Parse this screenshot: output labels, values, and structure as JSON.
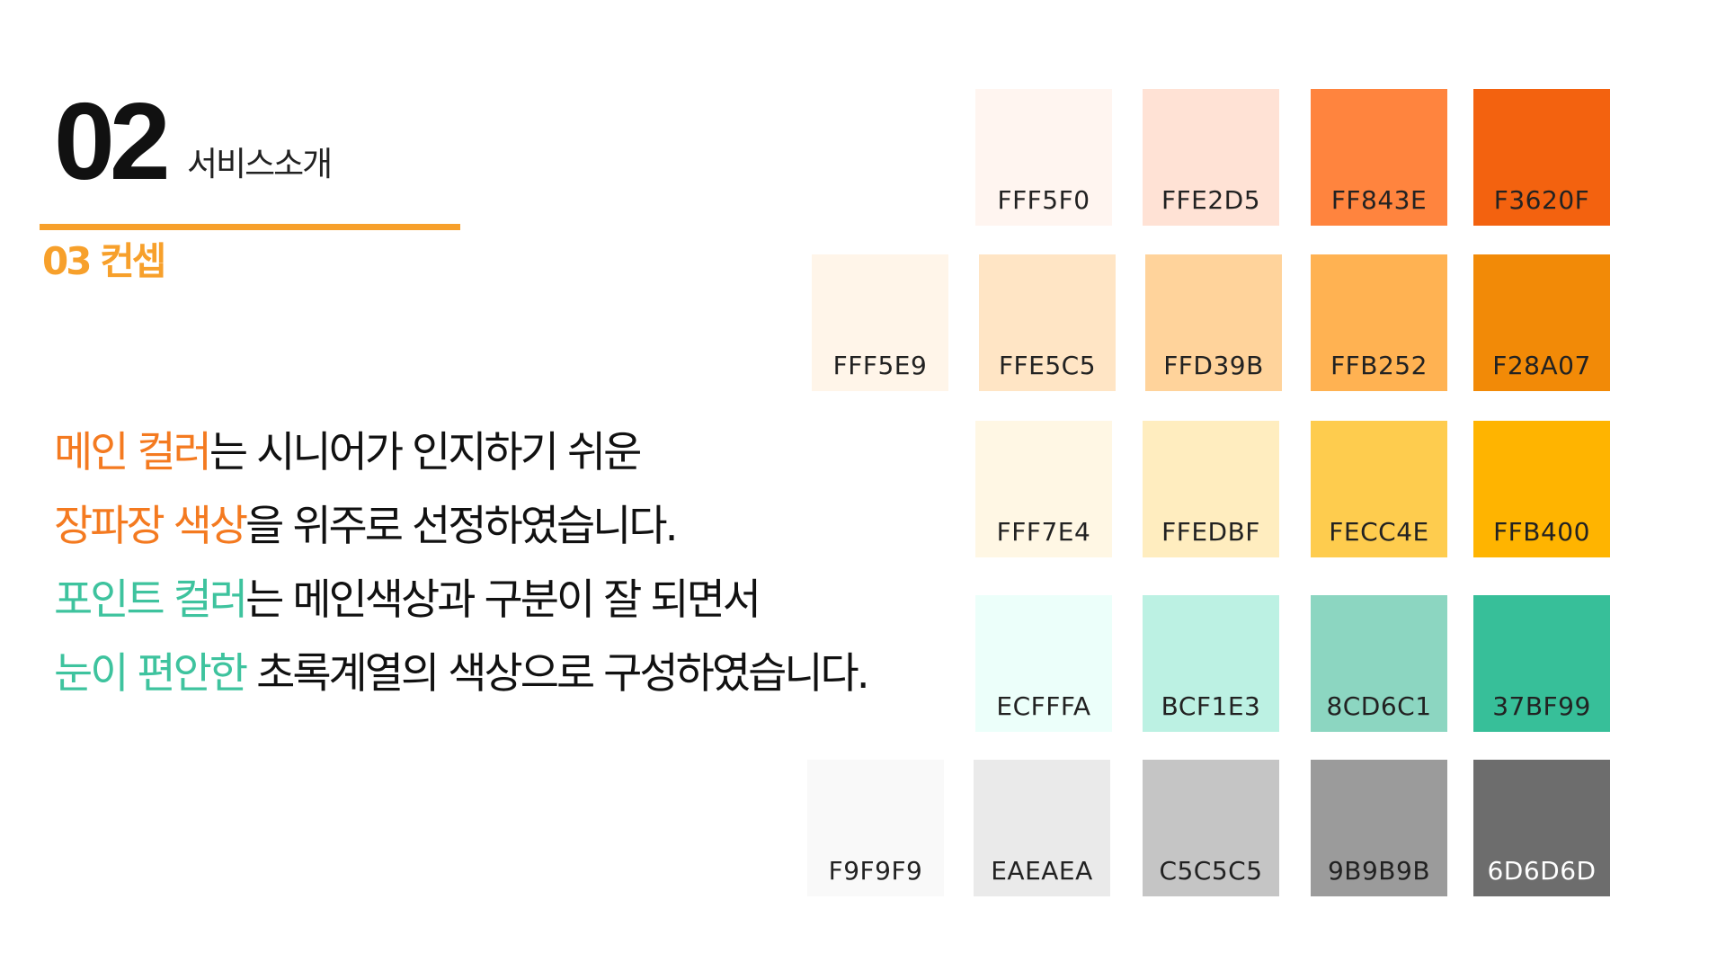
{
  "header": {
    "section_number": "02",
    "section_name": "서비스소개",
    "sub_title": "03 컨셉"
  },
  "body": {
    "line1": {
      "highlight": "메인 컬러",
      "rest_a": "는 ",
      "underlined": "시니어가 인지하기 쉬운"
    },
    "line2": {
      "highlight": "장파장 색상",
      "rest": "을 위주로 선정하였습니다."
    },
    "line3": {
      "highlight": "포인트 컬러",
      "rest_a": "는 ",
      "underlined": "메인색상과 구분이",
      "rest_b": " 잘 되면서"
    },
    "line4": {
      "highlight": "눈이 편안한",
      "rest": " 초록계열의 색상으로 구성하였습니다."
    }
  },
  "palette": {
    "rows": [
      [
        {
          "hex": "FFF5F0",
          "color": "#FFF5F0"
        },
        {
          "hex": "FFE2D5",
          "color": "#FFE2D5"
        },
        {
          "hex": "FF843E",
          "color": "#FF843E"
        },
        {
          "hex": "F3620F",
          "color": "#F3620F"
        }
      ],
      [
        {
          "hex": "FFF5E9",
          "color": "#FFF5E9"
        },
        {
          "hex": "FFE5C5",
          "color": "#FFE5C5"
        },
        {
          "hex": "FFD39B",
          "color": "#FFD39B"
        },
        {
          "hex": "FFB252",
          "color": "#FFB252"
        },
        {
          "hex": "F28A07",
          "color": "#F28A07"
        }
      ],
      [
        {
          "hex": "FFF7E4",
          "color": "#FFF7E4"
        },
        {
          "hex": "FFEDBF",
          "color": "#FFEDBF"
        },
        {
          "hex": "FECC4E",
          "color": "#FECC4E"
        },
        {
          "hex": "FFB400",
          "color": "#FFB400"
        }
      ],
      [
        {
          "hex": "ECFFFA",
          "color": "#ECFFFA"
        },
        {
          "hex": "BCF1E3",
          "color": "#BCF1E3"
        },
        {
          "hex": "8CD6C1",
          "color": "#8CD6C1"
        },
        {
          "hex": "37BF99",
          "color": "#37BF99"
        }
      ],
      [
        {
          "hex": "F9F9F9",
          "color": "#F9F9F9"
        },
        {
          "hex": "EAEAEA",
          "color": "#EAEAEA"
        },
        {
          "hex": "C5C5C5",
          "color": "#C5C5C5"
        },
        {
          "hex": "9B9B9B",
          "color": "#9B9B9B"
        },
        {
          "hex": "6D6D6D",
          "color": "#6D6D6D"
        }
      ]
    ]
  }
}
